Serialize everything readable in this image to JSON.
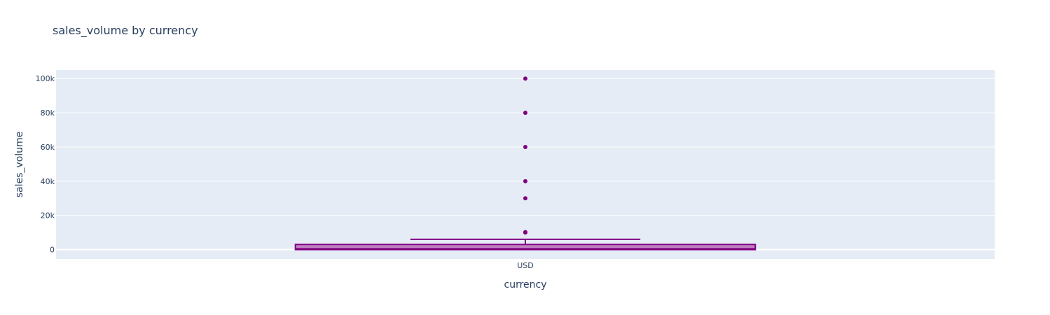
{
  "chart_data": {
    "type": "box",
    "title": "sales_volume by currency",
    "xlabel": "currency",
    "ylabel": "sales_volume",
    "categories": [
      "USD"
    ],
    "ylim": [
      -5500,
      105000
    ],
    "yticks": [
      0,
      20000,
      40000,
      60000,
      80000,
      100000
    ],
    "ytick_labels": [
      "0",
      "20k",
      "40k",
      "60k",
      "80k",
      "100k"
    ],
    "grid": true,
    "series": [
      {
        "category": "USD",
        "min": 0,
        "q1": 0,
        "median": 500,
        "q3": 3000,
        "upper_fence": 6000,
        "outliers": [
          10000,
          10200,
          30000,
          40000,
          60000,
          80000,
          100000
        ]
      }
    ],
    "colors": {
      "box_line": "#800080",
      "box_fill": "#c080c0",
      "plot_bg": "#e5ecf6",
      "grid": "#ffffff",
      "text": "#2a3f5f"
    }
  }
}
